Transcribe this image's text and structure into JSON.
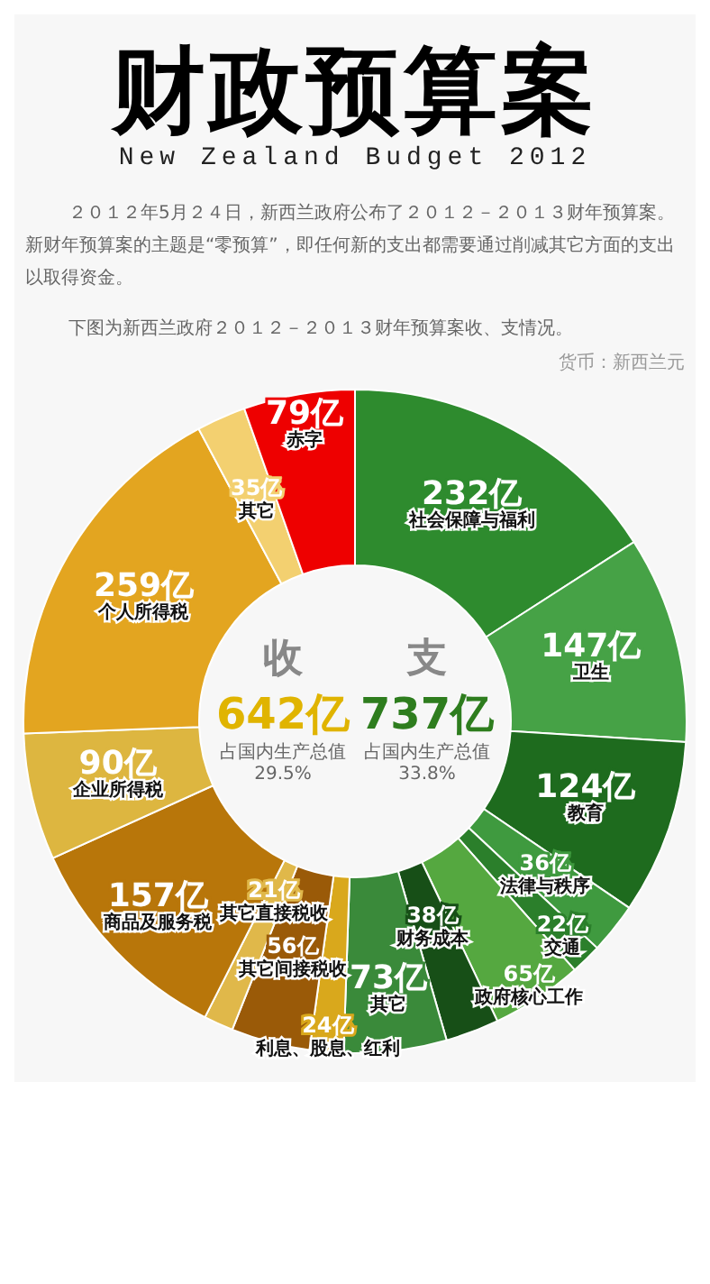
{
  "chart_data": {
    "type": "donut",
    "title": "财政预算案",
    "subtitle": "New Zealand Budget 2012",
    "categories": [
      "社会保障与福利",
      "卫生",
      "教育",
      "法律与秩序",
      "交通",
      "政府核心工作",
      "财务成本",
      "其它",
      "利息、股息、红利",
      "其它间接税收",
      "其它直接税收",
      "商品及服务税",
      "企业所得税",
      "个人所得税",
      "其它",
      "赤字"
    ],
    "values": [
      232,
      147,
      124,
      36,
      22,
      65,
      38,
      73,
      24,
      56,
      21,
      157,
      90,
      259,
      35,
      79
    ],
    "value_labels": [
      "232亿",
      "147亿",
      "124亿",
      "36亿",
      "22亿",
      "65亿",
      "38亿",
      "73亿",
      "24亿",
      "56亿",
      "21亿",
      "157亿",
      "90亿",
      "259亿",
      "35亿",
      "79亿"
    ],
    "colors": [
      "#2e8b2e",
      "#46a246",
      "#1e6b1e",
      "#3f9a3f",
      "#2b7f2b",
      "#55a840",
      "#174f17",
      "#3a8a3a",
      "#d9a81c",
      "#9a5a08",
      "#e0b84a",
      "#b8760a",
      "#ddb640",
      "#e3a520",
      "#f3d070",
      "#ee0000"
    ],
    "legend": false,
    "annotations": [
      "２０１２年5月２４日，新西兰政府公布了２０１２－２０１３财年预算案。新财年预算案的主题是“零预算”，即任何新的支出都需要通过削减其它方面的支出以取得资金。",
      "下图为新西兰政府２０１２－２０１３财年预算案收、支情况。",
      "货币：新西兰元",
      "收",
      "642亿",
      "占国内生产总值",
      "29.5%",
      "支",
      "737亿",
      "占国内生产总值",
      "33.8%"
    ]
  }
}
